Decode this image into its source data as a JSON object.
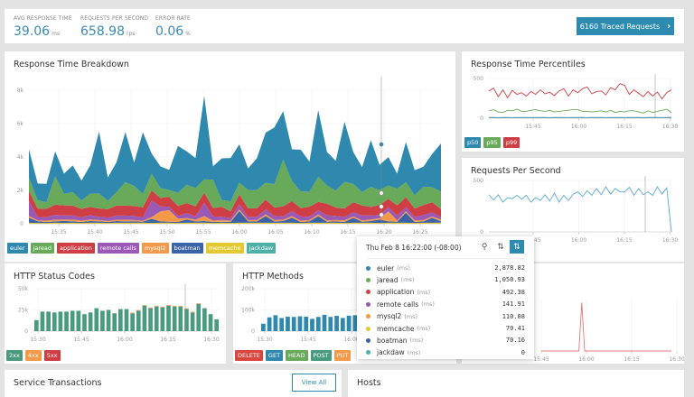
{
  "summary": {
    "avg_response": {
      "label": "AVG RESPONSE TIME",
      "value": "39.06",
      "unit": "ms"
    },
    "rps": {
      "label": "REQUESTS PER SECOND",
      "value": "658.98",
      "unit": "rps"
    },
    "error_rate": {
      "label": "ERROR RATE",
      "value": "0.06",
      "unit": "%"
    },
    "traced_button": "6160 Traced Requests",
    "accent": "#2e8bb0"
  },
  "chart_data": [
    {
      "id": "breakdown",
      "type": "area",
      "stacked": true,
      "title": "Response Time Breakdown",
      "ytick_labels": [
        "0",
        "2k",
        "4k",
        "6k",
        "8k"
      ],
      "ylim": [
        0,
        8000
      ],
      "xtick_labels": [
        "15:35",
        "15:40",
        "15:45",
        "15:50",
        "15:55",
        "16:00",
        "16:05",
        "16:10",
        "16:15",
        "16:20",
        "16:25"
      ],
      "x_range": [
        "15:30",
        "16:28"
      ],
      "series": [
        {
          "name": "jackdaw",
          "color": "#4cb0a6",
          "values": [
            0,
            0,
            0,
            0,
            0,
            0,
            0,
            0,
            0,
            0,
            0,
            0,
            0,
            0,
            0,
            0,
            0,
            0,
            0,
            0,
            0,
            0,
            0,
            0,
            0,
            0,
            0,
            0,
            0,
            0,
            0,
            0,
            0,
            0,
            0,
            0,
            0,
            0,
            0,
            0,
            0,
            0,
            0,
            0,
            0,
            0,
            0,
            0
          ]
        },
        {
          "name": "memcache",
          "color": "#e3c832",
          "values": [
            60,
            50,
            50,
            60,
            50,
            60,
            50,
            60,
            60,
            50,
            60,
            60,
            60,
            60,
            50,
            60,
            60,
            50,
            60,
            60,
            60,
            50,
            60,
            50,
            60,
            60,
            60,
            60,
            60,
            60,
            60,
            50,
            60,
            60,
            60,
            60,
            50,
            60,
            60,
            60,
            50,
            60,
            60,
            60,
            50,
            60,
            60,
            70
          ]
        },
        {
          "name": "boatman",
          "color": "#3b63a8",
          "values": [
            300,
            100,
            60,
            80,
            120,
            80,
            60,
            100,
            80,
            60,
            100,
            80,
            80,
            60,
            250,
            80,
            60,
            60,
            200,
            80,
            100,
            60,
            60,
            60,
            700,
            80,
            80,
            400,
            80,
            100,
            300,
            60,
            80,
            400,
            60,
            80,
            60,
            300,
            60,
            100,
            200,
            80,
            60,
            600,
            60,
            80,
            300,
            70
          ]
        },
        {
          "name": "mysql2",
          "color": "#f39a4a",
          "values": [
            100,
            60,
            80,
            100,
            80,
            100,
            80,
            100,
            80,
            60,
            80,
            100,
            80,
            60,
            100,
            600,
            700,
            200,
            80,
            100,
            300,
            80,
            100,
            80,
            100,
            80,
            80,
            100,
            80,
            80,
            100,
            80,
            80,
            100,
            80,
            80,
            100,
            80,
            80,
            100,
            80,
            600,
            80,
            80,
            100,
            80,
            80,
            110
          ]
        },
        {
          "name": "remote calls",
          "color": "#9b59b6",
          "values": [
            900,
            200,
            200,
            300,
            250,
            250,
            200,
            250,
            200,
            200,
            250,
            250,
            250,
            200,
            1000,
            300,
            200,
            150,
            300,
            200,
            800,
            250,
            200,
            150,
            300,
            200,
            200,
            300,
            250,
            200,
            300,
            250,
            200,
            250,
            300,
            250,
            200,
            250,
            300,
            250,
            200,
            250,
            300,
            250,
            200,
            300,
            250,
            140
          ]
        },
        {
          "name": "application",
          "color": "#cf3e44",
          "values": [
            600,
            500,
            500,
            600,
            600,
            600,
            500,
            500,
            500,
            500,
            600,
            600,
            600,
            600,
            600,
            500,
            600,
            600,
            600,
            600,
            600,
            500,
            600,
            400,
            600,
            500,
            500,
            600,
            500,
            600,
            600,
            500,
            600,
            500,
            700,
            500,
            500,
            600,
            600,
            500,
            600,
            500,
            600,
            600,
            500,
            600,
            600,
            490
          ]
        },
        {
          "name": "jaread",
          "color": "#68aa5a",
          "values": [
            800,
            500,
            400,
            1700,
            700,
            800,
            500,
            800,
            900,
            500,
            800,
            1400,
            1200,
            800,
            1000,
            600,
            400,
            800,
            1100,
            1100,
            800,
            1700,
            400,
            600,
            700,
            1100,
            1100,
            1000,
            1400,
            2800,
            1200,
            1000,
            900,
            1500,
            1100,
            1000,
            1600,
            1100,
            800,
            1200,
            900,
            800,
            1000,
            900,
            800,
            1100,
            900,
            1050
          ]
        },
        {
          "name": "euler",
          "color": "#2f88ae",
          "values": [
            1700,
            1000,
            1100,
            1500,
            1200,
            1600,
            1200,
            1700,
            3700,
            1400,
            1800,
            3000,
            1400,
            3700,
            1200,
            1300,
            1200,
            2800,
            2000,
            1800,
            5000,
            800,
            2500,
            2600,
            2300,
            1300,
            1900,
            3000,
            3400,
            2900,
            1900,
            2500,
            1800,
            4000,
            2000,
            1800,
            3600,
            1900,
            1500,
            2800,
            1500,
            1700,
            900,
            2400,
            1500,
            1200,
            2000,
            2880
          ]
        }
      ]
    },
    {
      "id": "percentiles",
      "type": "line",
      "title": "Response Time Percentiles",
      "ytick_labels": [
        "0",
        "500"
      ],
      "ylim": [
        0,
        700
      ],
      "xtick_labels": [
        "15:45",
        "16:00",
        "16:15",
        "16:30"
      ],
      "x_range": [
        "15:33",
        "16:31"
      ],
      "series": [
        {
          "name": "p50",
          "color": "#2f88ae",
          "values": [
            12,
            12,
            11,
            12,
            12,
            11,
            12,
            12,
            12,
            11,
            12,
            12,
            12,
            11,
            12,
            12,
            12,
            11,
            12,
            12,
            12,
            11,
            12,
            12,
            12,
            11,
            12,
            12,
            12,
            11,
            12,
            12,
            12,
            11,
            12,
            12,
            12,
            11,
            12,
            12
          ]
        },
        {
          "name": "p95",
          "color": "#68aa5a",
          "values": [
            130,
            150,
            110,
            100,
            140,
            130,
            160,
            120,
            120,
            140,
            150,
            130,
            120,
            140,
            110,
            120,
            130,
            140,
            150,
            150,
            120,
            120,
            110,
            120,
            130,
            110,
            140,
            100,
            120,
            110,
            130,
            130,
            110,
            90,
            130,
            100,
            120,
            140,
            160,
            100
          ]
        },
        {
          "name": "p99",
          "color": "#cf3e44",
          "values": [
            480,
            530,
            380,
            500,
            360,
            490,
            420,
            450,
            390,
            470,
            420,
            500,
            430,
            460,
            400,
            480,
            520,
            390,
            500,
            450,
            520,
            550,
            430,
            470,
            480,
            410,
            540,
            500,
            610,
            580,
            420,
            500,
            440,
            380,
            470,
            390,
            460,
            340,
            450,
            500
          ]
        }
      ]
    },
    {
      "id": "rps",
      "type": "line",
      "title": "Requests Per Second",
      "ytick_labels": [
        "0",
        "500"
      ],
      "ylim": [
        0,
        900
      ],
      "xtick_labels": [
        "15:45",
        "16:00",
        "16:15",
        "16:30"
      ],
      "x_range": [
        "15:33",
        "16:31"
      ],
      "series": [
        {
          "color": "#5aa9cf",
          "values": [
            650,
            560,
            650,
            520,
            600,
            580,
            640,
            570,
            640,
            520,
            600,
            550,
            650,
            540,
            680,
            520,
            640,
            550,
            660,
            700,
            620,
            720,
            640,
            760,
            650,
            790,
            660,
            760,
            700,
            700,
            780,
            640,
            760,
            650,
            700,
            640,
            790,
            660,
            770,
            0
          ]
        }
      ]
    },
    {
      "id": "status",
      "type": "bar",
      "stacked": true,
      "title": "HTTP Status Codes",
      "ytick_labels": [
        "0",
        "25k",
        "50k"
      ],
      "ylim": [
        0,
        50000
      ],
      "xtick_labels": [
        "15:30",
        "15:45",
        "16:00",
        "16:15",
        "16:30"
      ],
      "series": [
        {
          "name": "2xx",
          "color": "#4a9a7f",
          "values": [
            13000,
            23000,
            23000,
            22000,
            23000,
            23000,
            24000,
            24000,
            20000,
            22000,
            27000,
            24000,
            25000,
            21000,
            26000,
            26000,
            21000,
            24000,
            30000,
            27000,
            29000,
            28000,
            30000,
            29000,
            29000,
            26000,
            22000,
            32000,
            27000,
            20000,
            14000
          ]
        },
        {
          "name": "4xx",
          "color": "#f39a4a",
          "values": [
            0,
            0,
            0,
            0,
            0,
            0,
            0,
            0,
            0,
            0,
            0,
            0,
            0,
            0,
            0,
            0,
            800,
            800,
            800,
            800,
            800,
            800,
            800,
            800,
            800,
            800,
            800,
            800,
            0,
            0,
            0
          ]
        },
        {
          "name": "5xx",
          "color": "#cf3e44",
          "values": [
            0,
            0,
            0,
            0,
            0,
            0,
            0,
            0,
            0,
            0,
            0,
            0,
            0,
            0,
            0,
            0,
            0,
            0,
            0,
            0,
            0,
            0,
            0,
            0,
            0,
            0,
            0,
            0,
            0,
            0,
            0
          ]
        }
      ]
    },
    {
      "id": "methods",
      "type": "bar",
      "stacked": true,
      "title": "HTTP Methods",
      "ytick_labels": [
        "0",
        "100k",
        "200k"
      ],
      "ylim": [
        0,
        200000
      ],
      "xtick_labels": [
        "15:30",
        "15:45",
        "16:00"
      ],
      "series": [
        {
          "name": "DELETE",
          "color": "#d9453f",
          "values": []
        },
        {
          "name": "GET",
          "color": "#2f88ae",
          "values": [
            35000,
            65000,
            75000,
            62000,
            68000,
            67000,
            70000,
            68000,
            58000,
            67000,
            77000,
            67000,
            72000,
            62000,
            73000,
            75000
          ]
        },
        {
          "name": "HEAD",
          "color": "#68aa5a",
          "values": []
        },
        {
          "name": "POST",
          "color": "#4a9a7f",
          "values": []
        },
        {
          "name": "PUT",
          "color": "#f39a4a",
          "values": []
        }
      ]
    },
    {
      "id": "errors",
      "type": "line",
      "xtick_labels": [
        "15:45",
        "16:00",
        "16:15",
        "16:30"
      ],
      "series": [
        {
          "color": "#e07a7a",
          "values": [
            0,
            0,
            0,
            0,
            0,
            0,
            0,
            0,
            0,
            0,
            0,
            0,
            0,
            0,
            1,
            0,
            0,
            0,
            0,
            0,
            0,
            0,
            0,
            0,
            0,
            0,
            0,
            0,
            0,
            0,
            0,
            0,
            0,
            0,
            0,
            0,
            0,
            0,
            0,
            0,
            0,
            0,
            0,
            0,
            0,
            0
          ]
        }
      ]
    }
  ],
  "tooltip": {
    "time": "Thu Feb 8 16:22:00 (-08:00)",
    "rows": [
      {
        "name": "euler",
        "unit": "(ms)",
        "value": "2,878.82",
        "color": "#2f88ae"
      },
      {
        "name": "jaread",
        "unit": "(ms)",
        "value": "1,050.93",
        "color": "#68aa5a"
      },
      {
        "name": "application",
        "unit": "(ms)",
        "value": "492.38",
        "color": "#cf3e44"
      },
      {
        "name": "remote calls",
        "unit": "(ms)",
        "value": "141.91",
        "color": "#9b59b6"
      },
      {
        "name": "mysql2",
        "unit": "(ms)",
        "value": "110.08",
        "color": "#f39a4a"
      },
      {
        "name": "memcache",
        "unit": "(ms)",
        "value": "70.41",
        "color": "#e3c832"
      },
      {
        "name": "boatman",
        "unit": "(ms)",
        "value": "70.16",
        "color": "#3b63a8"
      },
      {
        "name": "jackdaw",
        "unit": "(ms)",
        "value": "0",
        "color": "#4cb0a6"
      }
    ]
  },
  "breakdown_legend": [
    {
      "label": "euler",
      "color": "#2f88ae"
    },
    {
      "label": "jaread",
      "color": "#68aa5a"
    },
    {
      "label": "application",
      "color": "#cf3e44"
    },
    {
      "label": "remote calls",
      "color": "#9b59b6"
    },
    {
      "label": "mysql2",
      "color": "#f39a4a"
    },
    {
      "label": "boatman",
      "color": "#3b63a8"
    },
    {
      "label": "memcache",
      "color": "#e3c832"
    },
    {
      "label": "jackdaw",
      "color": "#4cb0a6"
    }
  ],
  "percentile_legend": [
    {
      "label": "p50",
      "color": "#2f88ae"
    },
    {
      "label": "p95",
      "color": "#68aa5a"
    },
    {
      "label": "p99",
      "color": "#cf3e44"
    }
  ],
  "status_legend": [
    {
      "label": "2xx",
      "color": "#4a9a7f"
    },
    {
      "label": "4xx",
      "color": "#f39a4a"
    },
    {
      "label": "5xx",
      "color": "#cf3e44"
    }
  ],
  "methods_legend": [
    {
      "label": "DELETE",
      "color": "#d9453f"
    },
    {
      "label": "GET",
      "color": "#2f88ae"
    },
    {
      "label": "HEAD",
      "color": "#68aa5a"
    },
    {
      "label": "POST",
      "color": "#4a9a7f"
    },
    {
      "label": "PUT",
      "color": "#f39a4a"
    }
  ],
  "service_transactions": {
    "title": "Service Transactions",
    "view_all": "View All"
  },
  "hosts": {
    "title": "Hosts"
  }
}
